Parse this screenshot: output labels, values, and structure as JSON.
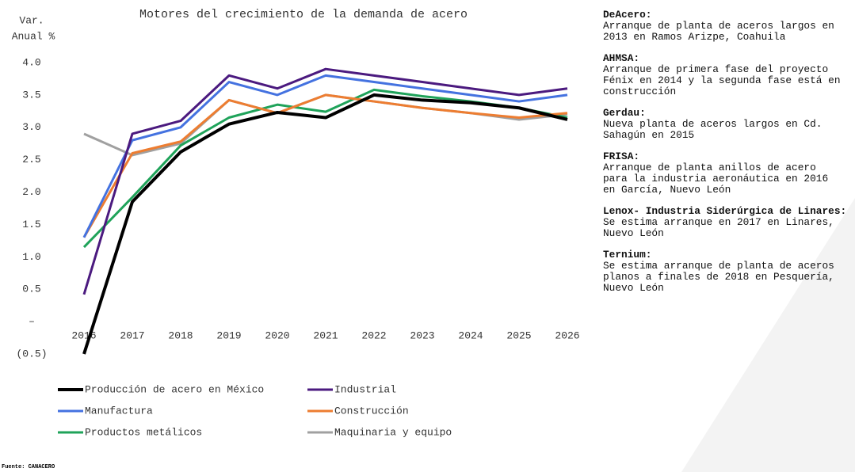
{
  "chart_data": {
    "type": "line",
    "title": "Motores del crecimiento de la demanda de acero",
    "y_label": [
      "Var.",
      "Anual %"
    ],
    "categories": [
      "2016",
      "2017",
      "2018",
      "2019",
      "2020",
      "2021",
      "2022",
      "2023",
      "2024",
      "2025",
      "2026"
    ],
    "series": [
      {
        "name": "Producción de acero en México",
        "color": "#000000",
        "values": [
          -0.5,
          1.85,
          2.62,
          3.05,
          3.23,
          3.15,
          3.5,
          3.42,
          3.38,
          3.3,
          3.12
        ]
      },
      {
        "name": "Industrial",
        "color": "#4b1a7f",
        "values": [
          0.42,
          2.9,
          3.1,
          3.8,
          3.6,
          3.9,
          3.8,
          3.7,
          3.6,
          3.5,
          3.6
        ]
      },
      {
        "name": "Manufactura",
        "color": "#4472e0",
        "values": [
          1.3,
          2.8,
          3.0,
          3.7,
          3.5,
          3.8,
          3.7,
          3.6,
          3.5,
          3.4,
          3.5
        ]
      },
      {
        "name": "Construcción",
        "color": "#ed7d31",
        "values": [
          1.3,
          2.6,
          2.78,
          3.42,
          3.22,
          3.5,
          3.4,
          3.3,
          3.22,
          3.15,
          3.22
        ]
      },
      {
        "name": "Productos metálicos",
        "color": "#1fa35a",
        "values": [
          1.15,
          1.92,
          2.72,
          3.15,
          3.35,
          3.24,
          3.58,
          3.48,
          3.4,
          3.3,
          3.15
        ]
      },
      {
        "name": "Maquinaria y equipo",
        "color": "#a0a0a0",
        "values": [
          2.9,
          2.57,
          2.75,
          3.42,
          3.22,
          3.5,
          3.4,
          3.3,
          3.22,
          3.12,
          3.2
        ]
      }
    ],
    "ylim": [
      -0.5,
      4.0
    ],
    "yticks": [
      {
        "value": -0.5,
        "label": "(0.5)"
      },
      {
        "value": 0,
        "label": "–"
      },
      0.5,
      {
        "value": 1.0,
        "label": "1.0"
      },
      1.5,
      {
        "value": 2.0,
        "label": "2.0"
      },
      2.5,
      {
        "value": 3.0,
        "label": "3.0"
      },
      3.5,
      {
        "value": 4.0,
        "label": "4.0"
      }
    ],
    "grid": false,
    "legend": "bottom"
  },
  "notes": [
    {
      "company": "DeAcero:",
      "lines": [
        "Arranque de planta de aceros largos en",
        "2013 en Ramos Arizpe, Coahuila"
      ]
    },
    {
      "company": "AHMSA:",
      "lines": [
        "Arranque de primera fase del proyecto",
        "Fénix en 2014 y la segunda fase está en",
        "construcción"
      ]
    },
    {
      "company": "Gerdau:",
      "lines": [
        "Nueva planta de aceros largos en Cd.",
        "Sahagún en 2015"
      ]
    },
    {
      "company": "FRISA:",
      "lines": [
        "Arranque de planta anillos de acero",
        "para la industria aeronáutica en 2016",
        "en García, Nuevo León"
      ]
    },
    {
      "company": "Lenox- Industria Siderúrgica de Linares:",
      "lines": [
        "Se estima arranque en 2017 en Linares,",
        "Nuevo León"
      ]
    },
    {
      "company": "Ternium:",
      "lines": [
        "Se estima arranque de planta de aceros",
        "planos a finales de 2018 en Pesquería,",
        "Nuevo León"
      ]
    }
  ],
  "source": "Fuente: CANACERO"
}
